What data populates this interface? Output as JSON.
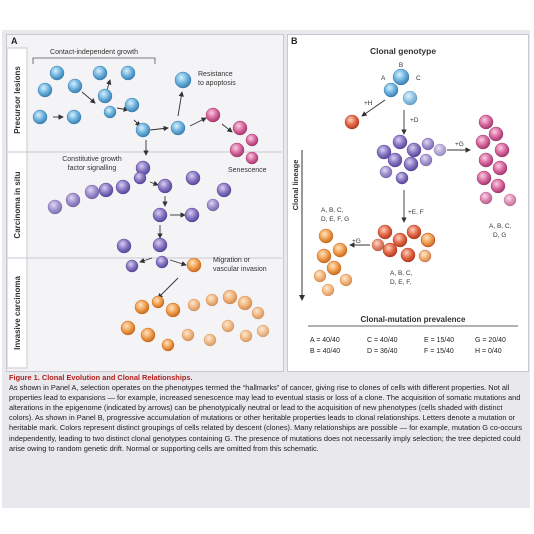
{
  "panelA": {
    "letter": "A",
    "stages": [
      "Precursor lesions",
      "Carcinoma in situ",
      "Invasive carcinoma"
    ],
    "labels": {
      "contact": "Contact-independent growth",
      "resistance1": "Resistance",
      "resistance2": "to apoptosis",
      "constitutive1": "Constitutive growth",
      "constitutive2": "factor signalling",
      "senescence": "Senescence",
      "migration1": "Migration or",
      "migration2": "vascular invasion"
    }
  },
  "panelB": {
    "letter": "B",
    "title": "Clonal genotype",
    "axis": "Clonal lineage",
    "labels": {
      "B": "B",
      "A": "A",
      "C": "C",
      "plusH": "+H",
      "plusD": "+D",
      "plusG1": "+G",
      "plusEF": "+E, F",
      "plusG2": "+G",
      "leftGeno1": "A, B, C,",
      "leftGeno2": "D, E, F, G",
      "rightGeno1": "A, B, C,",
      "rightGeno2": "D, G",
      "midGeno1": "A, B, C,",
      "midGeno2": "D, E, F,"
    },
    "prevalence_title": "Clonal-mutation prevalence",
    "prevalence": [
      [
        "A = 40/40",
        "C = 40/40",
        "E = 15/40",
        "G = 20/40"
      ],
      [
        "B = 40/40",
        "D = 36/40",
        "F = 15/40",
        "H = 0/40"
      ]
    ]
  },
  "caption": {
    "title": "Figure 1. Clonal Evolution and Clonal Relationships.",
    "body": "As shown in Panel A, selection operates on the phenotypes termed the “hallmarks” of cancer, giving rise to clones of cells with different properties. Not all properties lead to expansions — for example, increased senescence may lead to eventual stasis or loss of a clone. The acquisition of somatic mutations and alterations in the epigenome (indicated by arrows) can be phenotypically neutral or lead to the acquisition of new phenotypes (cells shaded with distinct colors). As shown in Panel B, progressive accumulation of mutations or other heritable properties leads to clonal relationships. Letters denote a mutation or heritable mark. Colors represent distinct groupings of cells related by descent (clones). Many relationships are possible — for example, mutation G co-occurs independently, leading to two distinct clonal genotypes containing G. The presence of mutations does not necessarily imply selection; the tree depicted could arise owing to random genetic drift. Normal or supporting cells are omitted from this schematic."
  },
  "colors": {
    "blue": "#6fb4dd",
    "purple": "#8a78c2",
    "pink": "#d96aa0",
    "orange": "#f0a050",
    "accent": "#b0211e"
  }
}
